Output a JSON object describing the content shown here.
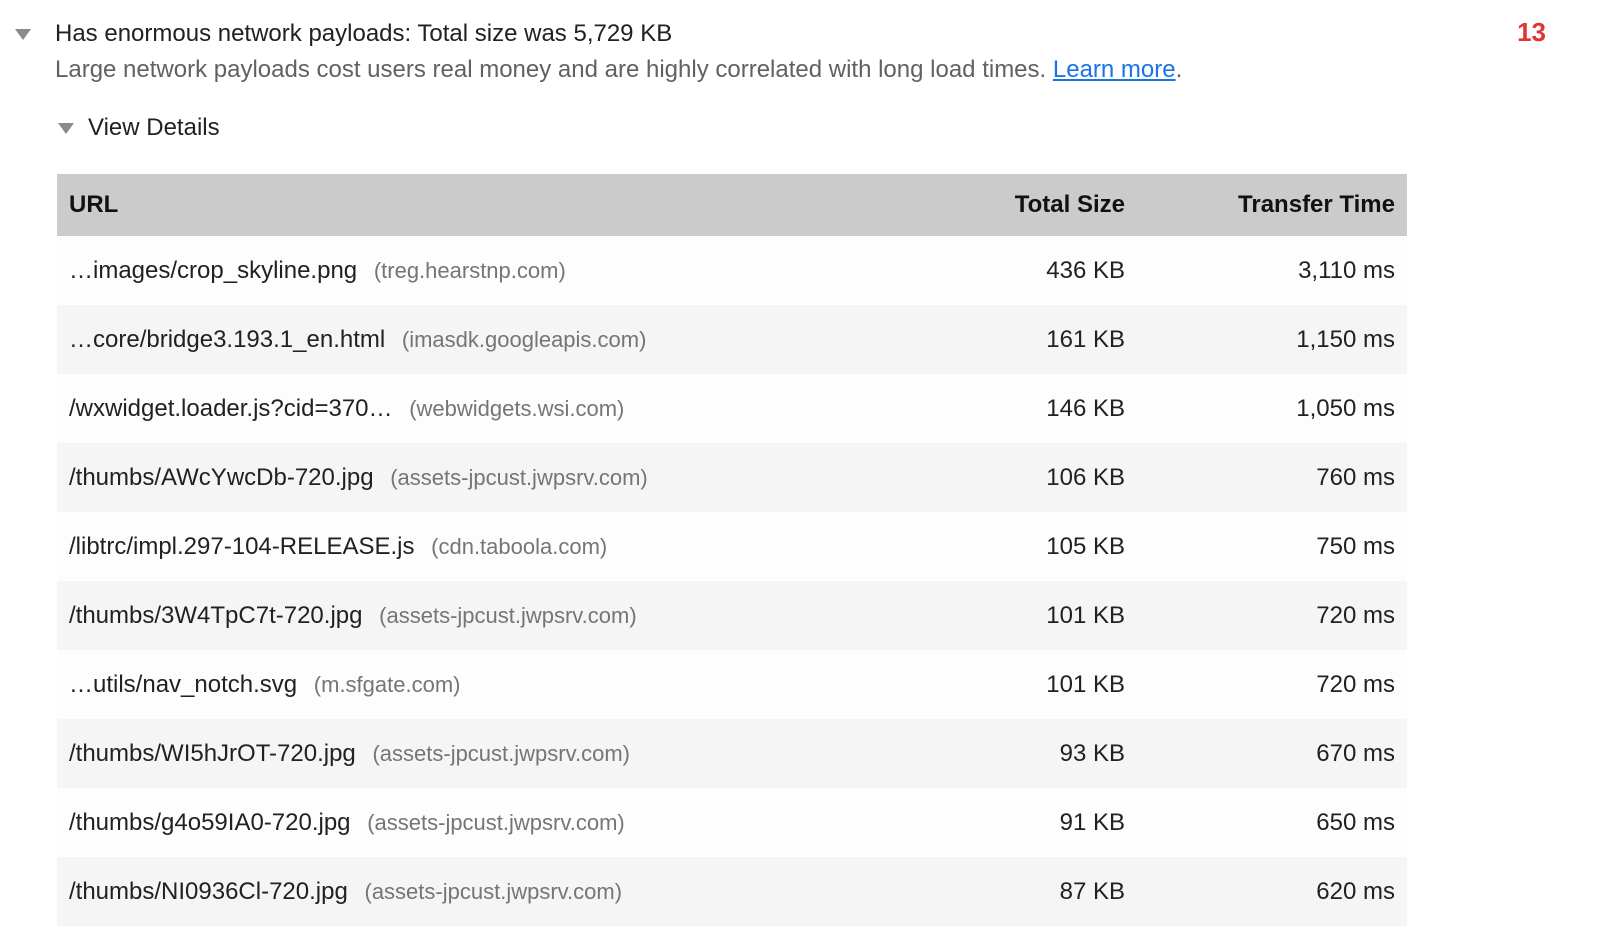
{
  "audit": {
    "title": "Has enormous network payloads: Total size was 5,729 KB",
    "description": "Large network payloads cost users real money and are highly correlated with long load times.",
    "learn_more_label": "Learn more",
    "learn_more_suffix": ".",
    "score": "13",
    "view_details_label": "View Details"
  },
  "table": {
    "columns": [
      "URL",
      "Total Size",
      "Transfer Time"
    ],
    "rows": [
      {
        "url": "…images/crop_skyline.png",
        "domain": "(treg.hearstnp.com)",
        "total_size": "436 KB",
        "transfer_time": "3,110 ms"
      },
      {
        "url": "…core/bridge3.193.1_en.html",
        "domain": "(imasdk.googleapis.com)",
        "total_size": "161 KB",
        "transfer_time": "1,150 ms"
      },
      {
        "url": "/wxwidget.loader.js?cid=370…",
        "domain": "(webwidgets.wsi.com)",
        "total_size": "146 KB",
        "transfer_time": "1,050 ms"
      },
      {
        "url": "/thumbs/AWcYwcDb-720.jpg",
        "domain": "(assets-jpcust.jwpsrv.com)",
        "total_size": "106 KB",
        "transfer_time": "760 ms"
      },
      {
        "url": "/libtrc/impl.297-104-RELEASE.js",
        "domain": "(cdn.taboola.com)",
        "total_size": "105 KB",
        "transfer_time": "750 ms"
      },
      {
        "url": "/thumbs/3W4TpC7t-720.jpg",
        "domain": "(assets-jpcust.jwpsrv.com)",
        "total_size": "101 KB",
        "transfer_time": "720 ms"
      },
      {
        "url": "…utils/nav_notch.svg",
        "domain": "(m.sfgate.com)",
        "total_size": "101 KB",
        "transfer_time": "720 ms"
      },
      {
        "url": "/thumbs/WI5hJrOT-720.jpg",
        "domain": "(assets-jpcust.jwpsrv.com)",
        "total_size": "93 KB",
        "transfer_time": "670 ms"
      },
      {
        "url": "/thumbs/g4o59IA0-720.jpg",
        "domain": "(assets-jpcust.jwpsrv.com)",
        "total_size": "91 KB",
        "transfer_time": "650 ms"
      },
      {
        "url": "/thumbs/NI0936Cl-720.jpg",
        "domain": "(assets-jpcust.jwpsrv.com)",
        "total_size": "87 KB",
        "transfer_time": "620 ms"
      }
    ]
  },
  "colors": {
    "score_red": "#e03535",
    "link_blue": "#1a73e8",
    "header_gray": "#cbcbcb",
    "row_alt_gray": "#f5f5f5",
    "domain_gray": "#757575"
  }
}
